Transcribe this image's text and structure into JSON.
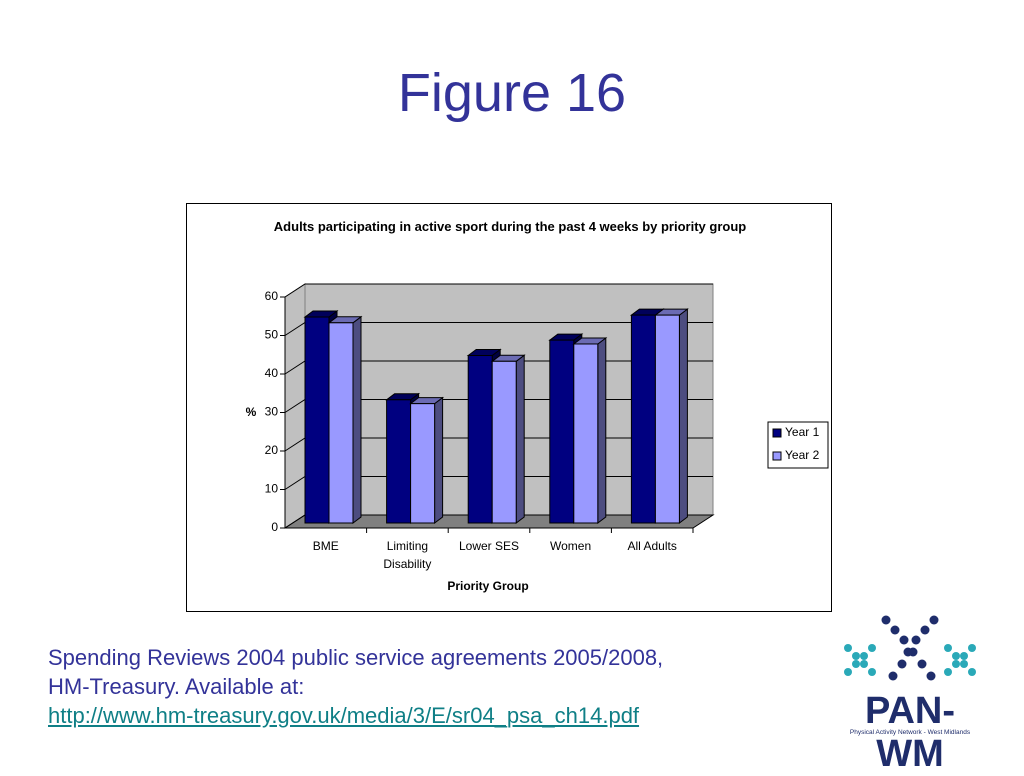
{
  "page_title": "Figure 16",
  "caption": [
    "Spending Reviews 2004 public service agreements 2005/2008,",
    "HM-Treasury. Available at:",
    "http://www.hm-treasury.gov.uk/media/3/E/sr04_psa_ch14.pdf"
  ],
  "logo": {
    "name": "PAN-WM",
    "subtitle": "Physical Activity Network - West Midlands"
  },
  "chart_data": {
    "type": "bar3d",
    "title": "Adults participating in active sport during the past 4 weeks by priority group",
    "x_label": "Priority Group",
    "y_label": "%",
    "categories": [
      "BME",
      "Limiting Disability",
      "Lower SES",
      "Women",
      "All Adults"
    ],
    "series": [
      {
        "name": "Year 1",
        "color": "#000080",
        "values": [
          53.5,
          32,
          43.5,
          47.5,
          54
        ]
      },
      {
        "name": "Year 2",
        "color": "#9999ff",
        "values": [
          52,
          31,
          42,
          46.5,
          54
        ]
      }
    ],
    "ylim": [
      0,
      60
    ],
    "yticks": [
      0,
      10,
      20,
      30,
      40,
      50,
      60
    ],
    "grid": true,
    "legend": "right"
  }
}
